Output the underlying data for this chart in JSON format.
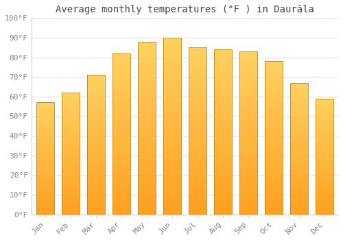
{
  "title": "Average monthly temperatures (°F ) in Daurāla",
  "months": [
    "Jan",
    "Feb",
    "Mar",
    "Apr",
    "May",
    "Jun",
    "Jul",
    "Aug",
    "Sep",
    "Oct",
    "Nov",
    "Dec"
  ],
  "values": [
    57,
    62,
    71,
    82,
    88,
    90,
    85,
    84,
    83,
    78,
    67,
    59
  ],
  "bar_color_top": "#FFD060",
  "bar_color_bottom": "#FFA020",
  "bar_edge_color": "#C8820A",
  "ylim": [
    0,
    100
  ],
  "yticks": [
    0,
    10,
    20,
    30,
    40,
    50,
    60,
    70,
    80,
    90,
    100
  ],
  "ylabel_suffix": "°F",
  "background_color": "#FFFFFF",
  "grid_color": "#E0E0E0",
  "title_fontsize": 10,
  "tick_fontsize": 8,
  "font_family": "monospace"
}
